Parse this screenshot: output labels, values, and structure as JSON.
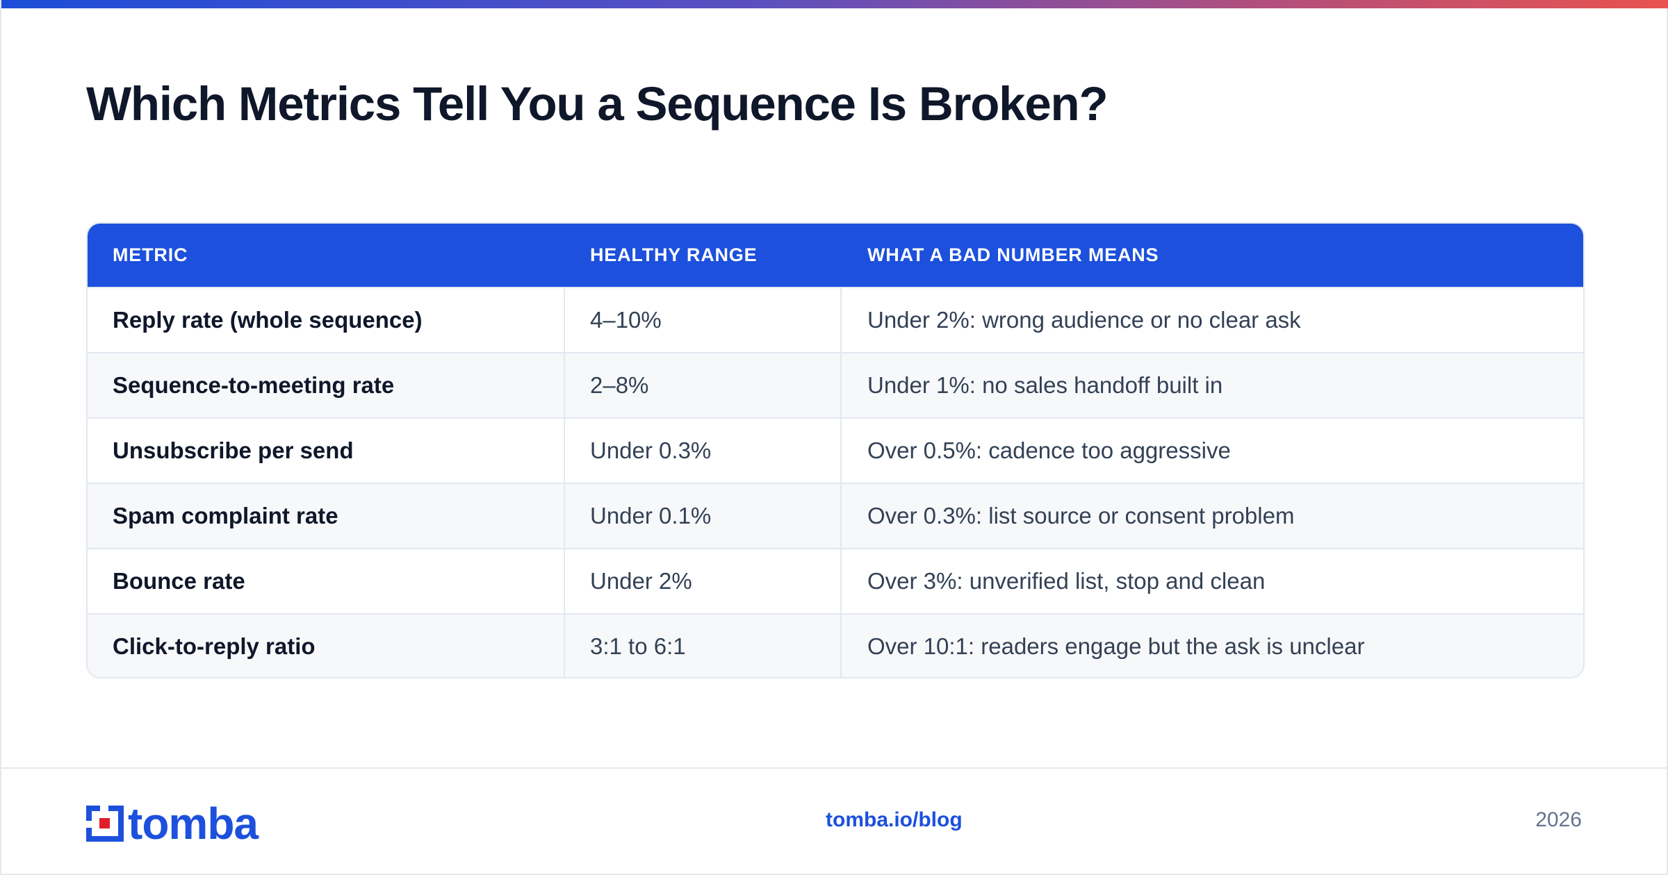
{
  "title": "Which Metrics Tell You a Sequence Is Broken?",
  "table": {
    "headers": [
      "METRIC",
      "HEALTHY RANGE",
      "WHAT A BAD NUMBER MEANS"
    ],
    "rows": [
      [
        "Reply rate (whole sequence)",
        "4–10%",
        "Under 2%: wrong audience or no clear ask"
      ],
      [
        "Sequence-to-meeting rate",
        "2–8%",
        "Under 1%: no sales handoff built in"
      ],
      [
        "Unsubscribe per send",
        "Under 0.3%",
        "Over 0.5%: cadence too aggressive"
      ],
      [
        "Spam complaint rate",
        "Under 0.1%",
        "Over 0.3%: list source or consent problem"
      ],
      [
        "Bounce rate",
        "Under 2%",
        "Over 3%: unverified list, stop and clean"
      ],
      [
        "Click-to-reply ratio",
        "3:1 to 6:1",
        "Over 10:1: readers engage but the ask is unclear"
      ]
    ]
  },
  "footer": {
    "logo_text": "tomba",
    "link": "tomba.io/blog",
    "year": "2026"
  },
  "colors": {
    "accent": "#1c50dd",
    "logo_red": "#e11d2a"
  }
}
